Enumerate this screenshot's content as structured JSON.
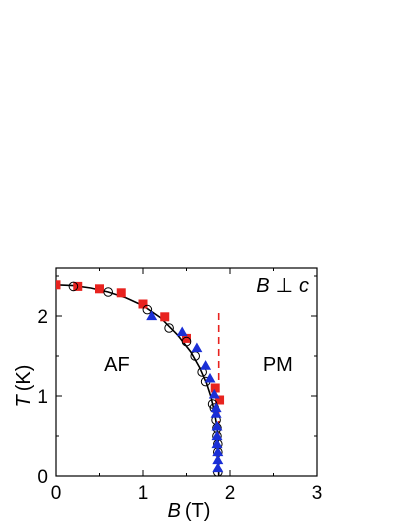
{
  "chart_data": {
    "type": "scatter",
    "title": "",
    "annotation": {
      "var_b": "B",
      "perp": "⊥",
      "var_c": "c"
    },
    "xlabel": {
      "symbol": "B",
      "unit": "(T)"
    },
    "ylabel": {
      "symbol": "T",
      "unit": "(K)"
    },
    "xlim": [
      0,
      3
    ],
    "ylim": [
      0,
      2.6
    ],
    "xticks": [
      0,
      1,
      2,
      3
    ],
    "xtick_labels": [
      "0",
      "1",
      "2",
      "3"
    ],
    "yticks": [
      0,
      1,
      2
    ],
    "ytick_labels": [
      "0",
      "1",
      "2"
    ],
    "grid": false,
    "regions": [
      {
        "label": "AF",
        "x": 0.7,
        "y": 1.4
      },
      {
        "label": "PM",
        "x": 2.55,
        "y": 1.4
      }
    ],
    "critical_line": {
      "x": 1.87,
      "y_start": 0,
      "y_end": 2.05,
      "style": "dashed",
      "color": "#e8231f"
    },
    "fit_curve": {
      "color": "#000000",
      "x": [
        0.0,
        0.2,
        0.4,
        0.6,
        0.8,
        1.0,
        1.2,
        1.4,
        1.55,
        1.65,
        1.73,
        1.78,
        1.82,
        1.85,
        1.87,
        1.87
      ],
      "y": [
        2.39,
        2.38,
        2.35,
        2.3,
        2.23,
        2.13,
        1.98,
        1.76,
        1.55,
        1.36,
        1.16,
        0.99,
        0.81,
        0.6,
        0.35,
        0.0
      ]
    },
    "series": [
      {
        "marker": "square",
        "color": "#e8231f",
        "x": [
          0.0,
          0.25,
          0.5,
          0.75,
          1.0,
          1.25,
          1.5,
          1.83,
          1.88
        ],
        "y": [
          2.39,
          2.37,
          2.34,
          2.29,
          2.15,
          1.99,
          1.72,
          1.1,
          0.95
        ]
      },
      {
        "marker": "circle-open",
        "color": "#000000",
        "x": [
          0.2,
          0.6,
          1.05,
          1.3,
          1.5,
          1.6,
          1.68,
          1.72,
          1.8,
          1.82,
          1.84,
          1.85,
          1.85,
          1.86,
          1.86,
          1.86
        ],
        "y": [
          2.37,
          2.3,
          2.08,
          1.85,
          1.68,
          1.5,
          1.3,
          1.18,
          0.9,
          0.85,
          0.7,
          0.6,
          0.5,
          0.4,
          0.3,
          0.05
        ]
      },
      {
        "marker": "triangle",
        "color": "#1a2fd6",
        "x": [
          1.1,
          1.45,
          1.62,
          1.72,
          1.77,
          1.82,
          1.84,
          1.84,
          1.85,
          1.85,
          1.85,
          1.86,
          1.86,
          1.86
        ],
        "y": [
          2.0,
          1.8,
          1.6,
          1.38,
          1.22,
          1.02,
          0.85,
          0.78,
          0.62,
          0.5,
          0.4,
          0.3,
          0.2,
          0.1
        ]
      }
    ]
  }
}
